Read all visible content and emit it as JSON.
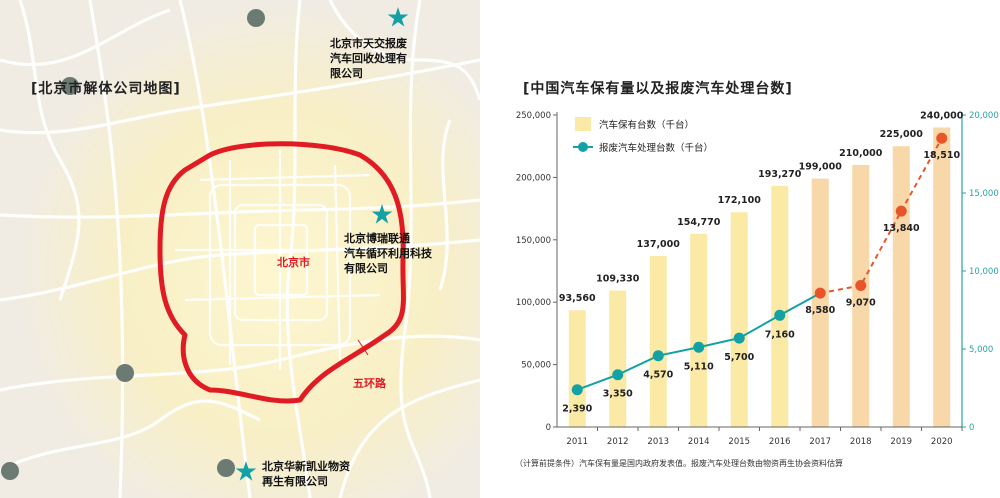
{
  "map": {
    "title": "[北京市解体公司地图]",
    "city_label": "北京市",
    "ring_label": "五环路",
    "places": [
      {
        "name": "北京市天交报废\n汽车回收处理有\n限公司",
        "marker": "star"
      },
      {
        "name": "北京博瑞联通\n汽车循环利用科技\n有限公司",
        "marker": "star"
      },
      {
        "name": "北京华新凯业物资\n再生有限公司",
        "marker": "star"
      }
    ],
    "colors": {
      "ring": "#e01b24",
      "star": "#13a1a6",
      "dot": "#6b7a72"
    }
  },
  "chart_title": "[中国汽车保有量以及报废汽车处理台数]",
  "footnote": "（计算前提条件）汽车保有量是国内政府发表值。报废汽车处理台数由物资再生协会资料估算",
  "chart_data": {
    "type": "bar",
    "categories": [
      "2011",
      "2012",
      "2013",
      "2014",
      "2015",
      "2016",
      "2017",
      "2018",
      "2019",
      "2020"
    ],
    "series": [
      {
        "name": "汽车保有台数（千台）",
        "type": "bar",
        "axis": "left",
        "values": [
          93560,
          109330,
          137000,
          154770,
          172100,
          193270,
          199000,
          210000,
          225000,
          240000
        ],
        "labels": [
          "93,560",
          "109,330",
          "137,000",
          "154,770",
          "172,100",
          "193,270",
          "199,000",
          "210,000",
          "225,000",
          "240,000"
        ],
        "estimated_from_index": 6,
        "color": "#fbe9a6",
        "color_estimated": "#f8d7a8"
      },
      {
        "name": "报废汽车处理台数（千台）",
        "type": "line",
        "axis": "right",
        "values": [
          2390,
          3350,
          4570,
          5110,
          5700,
          7160,
          8580,
          9070,
          13840,
          18510
        ],
        "labels": [
          "2,390",
          "3,350",
          "4,570",
          "5,110",
          "5,700",
          "7,160",
          "8,580",
          "9,070",
          "13,840",
          "18,510"
        ],
        "estimated_from_index": 6,
        "color": "#13a1a6",
        "color_estimated": "#e8552a"
      }
    ],
    "y_left": {
      "min": 0,
      "max": 250000,
      "ticks": [
        "0",
        "50,000",
        "100,000",
        "150,000",
        "200,000",
        "250,000"
      ]
    },
    "y_right": {
      "min": 0,
      "max": 20000,
      "ticks": [
        "0",
        "5,000",
        "10,000",
        "15,000",
        "20,000"
      ]
    },
    "legend_position": "top-left",
    "grid": false
  }
}
